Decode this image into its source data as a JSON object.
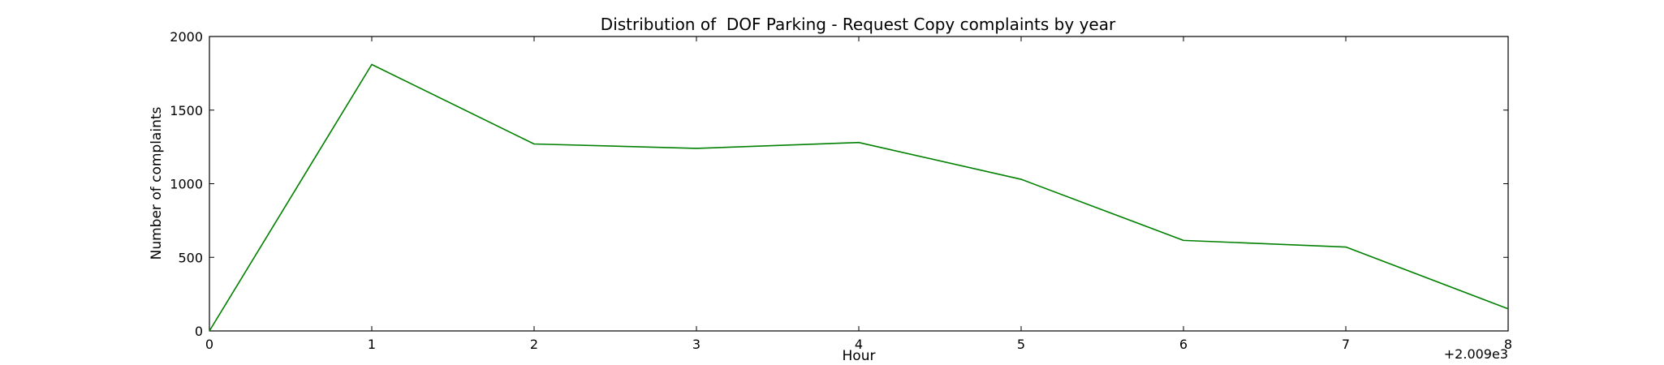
{
  "chart_data": {
    "type": "line",
    "title": "Distribution of  DOF Parking - Request Copy complaints by year",
    "xlabel": "Hour",
    "ylabel": "Number of complaints",
    "x_offset_label": "+2.009e3",
    "x": [
      0,
      1,
      2,
      3,
      4,
      5,
      6,
      7,
      8
    ],
    "x_ticks": [
      "0",
      "1",
      "2",
      "3",
      "4",
      "5",
      "6",
      "7",
      "8"
    ],
    "y_ticks": [
      "0",
      "500",
      "1000",
      "1500",
      "2000"
    ],
    "xlim": [
      0,
      8
    ],
    "ylim": [
      0,
      2000
    ],
    "grid": false,
    "series": [
      {
        "color": "#008000",
        "values": [
          0,
          1810,
          1270,
          1240,
          1280,
          1030,
          615,
          570,
          150
        ]
      }
    ]
  }
}
